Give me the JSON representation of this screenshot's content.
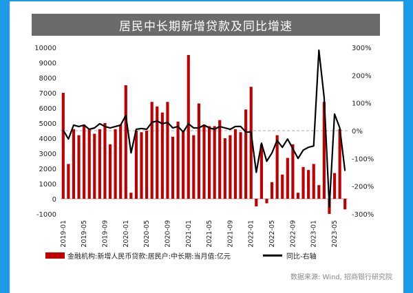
{
  "title": "居民中长期新增贷款及同比增速",
  "colors": {
    "bar": "#c00000",
    "line": "#000000",
    "title_bg": "#6b6b6b",
    "page_bg": "#1c9be6"
  },
  "legend": {
    "bar_label": "金融机构:新增人民币贷款:居民户:中长期:当月值:亿元",
    "line_label": "同比-右轴"
  },
  "source": "数据来源: Wind, 招商银行研究院",
  "chart_data": {
    "type": "bar+line",
    "title": "居民中长期新增贷款及同比增速",
    "y_left_ticks": [
      "10000",
      "9000",
      "8000",
      "7000",
      "6000",
      "5000",
      "4000",
      "3000",
      "2000",
      "1000",
      "0",
      "-1000"
    ],
    "y_right_ticks": [
      "300%",
      "200%",
      "100%",
      "0%",
      "-100%",
      "-200%",
      "-300%"
    ],
    "x_ticks": [
      "2019-01",
      "2019-05",
      "2019-09",
      "2020-01",
      "2020-05",
      "2020-09",
      "2021-01",
      "2021-05",
      "2021-09",
      "2022-01",
      "2022-05",
      "2022-09",
      "2023-01",
      "2023-05"
    ],
    "y_left_range": [
      -1000,
      10000
    ],
    "y_right_range": [
      -300,
      300
    ],
    "categories": [
      "2019-01",
      "2019-02",
      "2019-03",
      "2019-04",
      "2019-05",
      "2019-06",
      "2019-07",
      "2019-08",
      "2019-09",
      "2019-10",
      "2019-11",
      "2019-12",
      "2020-01",
      "2020-02",
      "2020-03",
      "2020-04",
      "2020-05",
      "2020-06",
      "2020-07",
      "2020-08",
      "2020-09",
      "2020-10",
      "2020-11",
      "2020-12",
      "2021-01",
      "2021-02",
      "2021-03",
      "2021-04",
      "2021-05",
      "2021-06",
      "2021-07",
      "2021-08",
      "2021-09",
      "2021-10",
      "2021-11",
      "2021-12",
      "2022-01",
      "2022-02",
      "2022-03",
      "2022-04",
      "2022-05",
      "2022-06",
      "2022-07",
      "2022-08",
      "2022-09",
      "2022-10",
      "2022-11",
      "2022-12",
      "2023-01",
      "2023-02",
      "2023-03",
      "2023-04",
      "2023-05",
      "2023-06",
      "2023-07"
    ],
    "series": [
      {
        "name": "金融机构:新增人民币贷款:居民户:中长期:当月值:亿元",
        "axis": "left",
        "values": [
          7000,
          2300,
          4600,
          4200,
          4900,
          4600,
          4300,
          4600,
          5000,
          3600,
          4600,
          4900,
          7500,
          400,
          4500,
          4400,
          4500,
          6400,
          6100,
          5700,
          6400,
          4100,
          5100,
          4500,
          9500,
          4200,
          6300,
          4900,
          4800,
          4800,
          5200,
          4000,
          4200,
          4600,
          4400,
          5900,
          7400,
          -500,
          3600,
          -300,
          1100,
          4200,
          1600,
          2700,
          3600,
          400,
          2100,
          1900,
          2300,
          900,
          6400,
          -1000,
          1700,
          4600,
          -700
        ]
      },
      {
        "name": "同比-右轴",
        "axis": "right",
        "values": [
          2,
          -30,
          20,
          15,
          20,
          5,
          10,
          25,
          15,
          10,
          15,
          20,
          55,
          -80,
          5,
          8,
          5,
          30,
          35,
          25,
          30,
          10,
          15,
          -5,
          25,
          10,
          10,
          20,
          10,
          5,
          15,
          10,
          5,
          15,
          15,
          -5,
          -5,
          -150,
          -45,
          -110,
          -80,
          -35,
          -60,
          -30,
          -65,
          -100,
          -70,
          -60,
          -55,
          290,
          120,
          -275,
          60,
          10,
          -145
        ]
      }
    ]
  }
}
